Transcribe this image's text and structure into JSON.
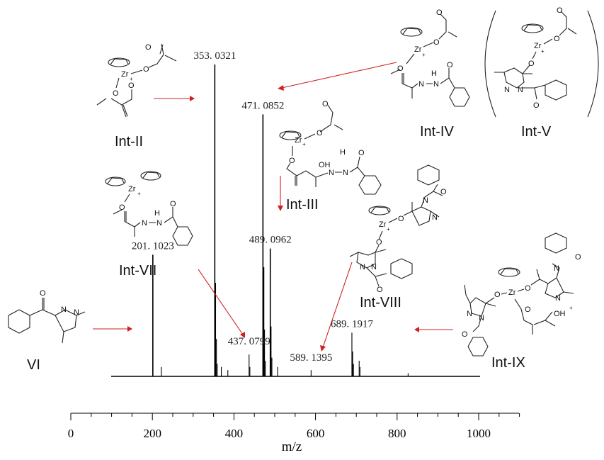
{
  "chart_data": {
    "type": "bar",
    "title": "",
    "xlabel": "m/z",
    "ylabel": "",
    "xlim": [
      0,
      1100
    ],
    "x_ticks": [
      "0",
      "200",
      "400",
      "600",
      "800",
      "1000"
    ],
    "peaks": [
      {
        "mz": 201.1023,
        "rel": 0.39,
        "label": "201. 1023"
      },
      {
        "mz": 222,
        "rel": 0.03
      },
      {
        "mz": 353.0321,
        "rel": 1.0,
        "label": "353. 0321"
      },
      {
        "mz": 355,
        "rel": 0.3
      },
      {
        "mz": 357,
        "rel": 0.12
      },
      {
        "mz": 359,
        "rel": 0.04
      },
      {
        "mz": 369,
        "rel": 0.03
      },
      {
        "mz": 385,
        "rel": 0.02
      },
      {
        "mz": 437.0799,
        "rel": 0.07,
        "label": "437. 0799"
      },
      {
        "mz": 439,
        "rel": 0.03
      },
      {
        "mz": 471.0852,
        "rel": 0.84,
        "label": "471. 0852"
      },
      {
        "mz": 473,
        "rel": 0.35
      },
      {
        "mz": 475,
        "rel": 0.15
      },
      {
        "mz": 477,
        "rel": 0.05
      },
      {
        "mz": 489.0962,
        "rel": 0.41,
        "label": "489. 0962"
      },
      {
        "mz": 491,
        "rel": 0.16
      },
      {
        "mz": 493,
        "rel": 0.06
      },
      {
        "mz": 507,
        "rel": 0.03
      },
      {
        "mz": 589.1395,
        "rel": 0.02,
        "label": "589. 1395"
      },
      {
        "mz": 689.1917,
        "rel": 0.14,
        "label": "689. 1917"
      },
      {
        "mz": 691,
        "rel": 0.08
      },
      {
        "mz": 693,
        "rel": 0.04
      },
      {
        "mz": 707,
        "rel": 0.05
      },
      {
        "mz": 709,
        "rel": 0.03
      },
      {
        "mz": 827,
        "rel": 0.01
      }
    ],
    "grid": false,
    "legend": "none"
  },
  "structures": {
    "int_2": "Int-II",
    "int_3": "Int-III",
    "int_4": "Int-IV",
    "int_5": "Int-V",
    "int_7": "Int-VII",
    "int_8": "Int-VIII",
    "int_9": "Int-IX",
    "vi": "VI"
  },
  "atoms": {
    "zr": "Zr",
    "o": "O",
    "n": "N",
    "h": "H",
    "oh": "OH",
    "plus": "+"
  },
  "colors": {
    "arrow": "#d02020",
    "spectrum": "#000000"
  }
}
